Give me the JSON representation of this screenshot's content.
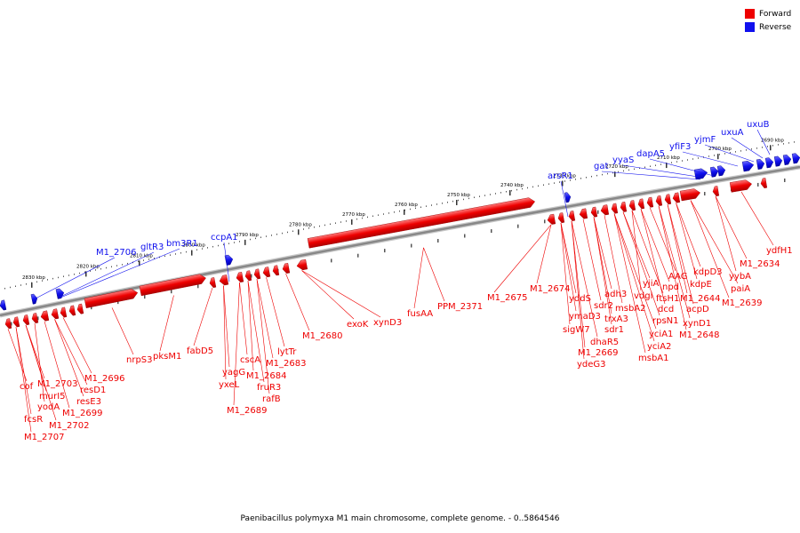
{
  "colors": {
    "forward": "#ee0000",
    "reverse": "#1010ee",
    "backbone": "#888888"
  },
  "legend": {
    "forward": "Forward",
    "reverse": "Reverse"
  },
  "footer": "Paenibacillus polymyxa M1 main chromosome, complete genome. - 0..5864546",
  "ticks": [
    "2830 kbp",
    "2820 kbp",
    "2810 kbp",
    "2800 kbp",
    "2790 kbp",
    "2780 kbp",
    "2770 kbp",
    "2760 kbp",
    "2750 kbp",
    "2740 kbp",
    "2730 kbp",
    "2720 kbp",
    "2710 kbp",
    "2700 kbp",
    "2690 kbp"
  ],
  "forward_labels": [
    "cof",
    "fcsR",
    "M1_2707",
    "M1_2703",
    "murI5",
    "yodA",
    "M1_2702",
    "M1_2699",
    "resE3",
    "resD1",
    "M1_2696",
    "nrpS3",
    "pksM1",
    "fabD5",
    "yagG",
    "yxeL",
    "M1_2689",
    "cscA",
    "M1_2684",
    "fruR3",
    "rafB",
    "lytTr",
    "M1_2683",
    "M1_2680",
    "exoK",
    "xynD3",
    "fusAA",
    "PPM_2371",
    "M1_2675",
    "M1_2674",
    "yddS",
    "ymaD3",
    "sigW7",
    "ydeG3",
    "M1_2669",
    "dhaR5",
    "sdr2",
    "adh3",
    "trxA3",
    "sdr1",
    "msbA2",
    "msbA1",
    "yciA2",
    "yciA1",
    "rpsN1",
    "yjiA",
    "vdgl",
    "ftsH1",
    "dcd",
    "npd",
    "AAG",
    "M1_2648",
    "xynD1",
    "acpD",
    "M1_2644",
    "kdpE",
    "kdpD3",
    "M1_2639",
    "paiA",
    "yybA",
    "M1_2634",
    "ydfH1"
  ],
  "reverse_labels": [
    "M1_2706",
    "gltR3",
    "bm3R1",
    "ccpA1",
    "arsR1",
    "gat",
    "yyaS",
    "dapA5",
    "yfiF3",
    "yjmF",
    "uxuA",
    "uxuB"
  ]
}
